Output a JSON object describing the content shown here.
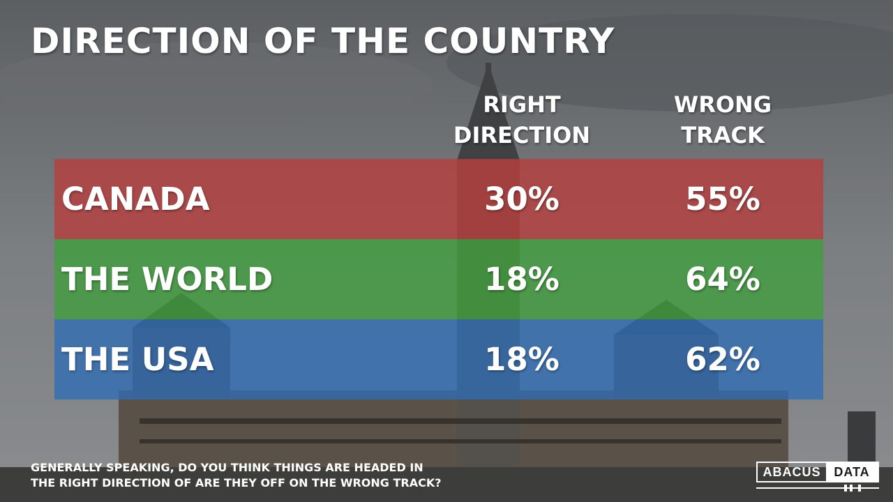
{
  "title": "DIRECTION OF THE COUNTRY",
  "columns": {
    "right": [
      "RIGHT",
      "DIRECTION"
    ],
    "wrong": [
      "WRONG",
      "TRACK"
    ]
  },
  "question": [
    "GENERALLY SPEAKING, DO YOU THINK THINGS ARE HEADED IN",
    "THE RIGHT DIRECTION OF ARE THEY OFF ON THE WRONG TRACK?"
  ],
  "logo": {
    "part1": "ABACUS",
    "part2": "DATA"
  },
  "chart_data": {
    "type": "table",
    "columns": [
      "RIGHT DIRECTION",
      "WRONG TRACK"
    ],
    "rows": [
      {
        "label": "CANADA",
        "right": "30%",
        "wrong": "55%",
        "color": "#b83c3c"
      },
      {
        "label": "THE WORLD",
        "right": "18%",
        "wrong": "64%",
        "color": "#3f9f3c"
      },
      {
        "label": "THE USA",
        "right": "18%",
        "wrong": "62%",
        "color": "#2f6db5"
      }
    ],
    "values_right": [
      30,
      18,
      18
    ],
    "values_wrong": [
      55,
      64,
      62
    ]
  }
}
